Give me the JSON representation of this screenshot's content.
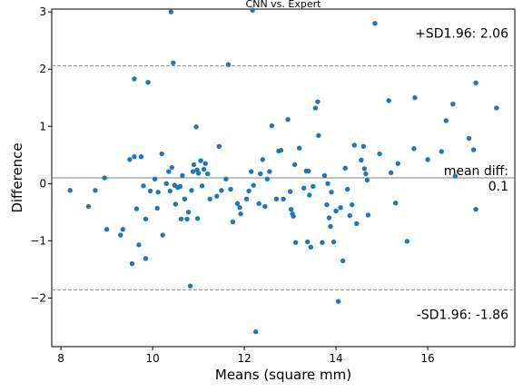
{
  "chart_data": {
    "type": "scatter",
    "title": "CNN vs. Expert",
    "xlabel": "Means (square mm)",
    "ylabel": "Difference",
    "xlim": [
      7.8,
      17.9
    ],
    "ylim": [
      -2.85,
      3.05
    ],
    "xticks": [
      8,
      10,
      12,
      14,
      16
    ],
    "yticks": [
      -2,
      -1,
      0,
      1,
      2,
      3
    ],
    "grid": false,
    "point_color": "#1f77b4",
    "mean_line": {
      "value": 0.1,
      "color": "#808080"
    },
    "upper_limit": {
      "value": 2.06,
      "color": "#808080"
    },
    "lower_limit": {
      "value": -1.86,
      "color": "#808080"
    },
    "annotations": {
      "upper": "+SD1.96: 2.06",
      "mean_label": "mean diff:",
      "mean_value": "0.1",
      "lower": "-SD1.96: -1.86"
    },
    "points": [
      [
        8.2,
        -0.12
      ],
      [
        8.6,
        -0.4
      ],
      [
        8.75,
        -0.12
      ],
      [
        8.95,
        0.1
      ],
      [
        9.0,
        -0.8
      ],
      [
        9.3,
        -0.9
      ],
      [
        9.35,
        -0.8
      ],
      [
        9.5,
        0.42
      ],
      [
        9.55,
        -1.4
      ],
      [
        9.6,
        0.47
      ],
      [
        9.65,
        -0.44
      ],
      [
        9.7,
        -1.07
      ],
      [
        9.6,
        1.83
      ],
      [
        9.75,
        0.47
      ],
      [
        9.8,
        -0.04
      ],
      [
        9.85,
        -1.31
      ],
      [
        9.85,
        -0.62
      ],
      [
        9.9,
        1.77
      ],
      [
        9.95,
        -0.13
      ],
      [
        10.05,
        0.08
      ],
      [
        10.1,
        -0.43
      ],
      [
        10.12,
        -0.15
      ],
      [
        10.2,
        0.52
      ],
      [
        10.22,
        -0.9
      ],
      [
        10.3,
        0.0
      ],
      [
        10.35,
        0.21
      ],
      [
        10.38,
        -0.13
      ],
      [
        10.4,
        3.0
      ],
      [
        10.42,
        0.28
      ],
      [
        10.45,
        2.11
      ],
      [
        10.48,
        -0.03
      ],
      [
        10.5,
        -0.36
      ],
      [
        10.55,
        -0.07
      ],
      [
        10.6,
        -0.05
      ],
      [
        10.62,
        -0.62
      ],
      [
        10.65,
        0.14
      ],
      [
        10.7,
        -0.27
      ],
      [
        10.75,
        -0.62
      ],
      [
        10.78,
        -0.5
      ],
      [
        10.82,
        -1.79
      ],
      [
        10.85,
        -0.12
      ],
      [
        10.88,
        0.21
      ],
      [
        10.9,
        0.33
      ],
      [
        10.95,
        0.99
      ],
      [
        10.97,
        0.24
      ],
      [
        10.98,
        -0.61
      ],
      [
        11.0,
        0.18
      ],
      [
        11.05,
        0.4
      ],
      [
        11.08,
        -0.04
      ],
      [
        11.12,
        0.25
      ],
      [
        11.15,
        0.35
      ],
      [
        11.2,
        0.17
      ],
      [
        11.25,
        -0.27
      ],
      [
        11.4,
        -0.22
      ],
      [
        11.45,
        0.65
      ],
      [
        11.5,
        -0.12
      ],
      [
        11.6,
        0.08
      ],
      [
        11.65,
        2.08
      ],
      [
        11.7,
        -0.1
      ],
      [
        11.75,
        -0.67
      ],
      [
        11.85,
        -0.35
      ],
      [
        11.9,
        -0.42
      ],
      [
        11.92,
        -0.53
      ],
      [
        12.05,
        -0.27
      ],
      [
        12.1,
        -0.13
      ],
      [
        12.15,
        0.21
      ],
      [
        12.18,
        3.03
      ],
      [
        12.2,
        -0.03
      ],
      [
        12.25,
        -2.59
      ],
      [
        12.32,
        -0.35
      ],
      [
        12.35,
        0.17
      ],
      [
        12.4,
        0.42
      ],
      [
        12.45,
        -0.4
      ],
      [
        12.5,
        0.08
      ],
      [
        12.55,
        0.21
      ],
      [
        12.6,
        1.01
      ],
      [
        12.7,
        -0.27
      ],
      [
        12.75,
        0.57
      ],
      [
        12.8,
        0.58
      ],
      [
        12.85,
        -0.27
      ],
      [
        12.95,
        1.12
      ],
      [
        13.0,
        -0.14
      ],
      [
        13.02,
        -0.45
      ],
      [
        13.05,
        -0.53
      ],
      [
        13.07,
        -0.57
      ],
      [
        13.1,
        0.33
      ],
      [
        13.12,
        -1.03
      ],
      [
        13.2,
        0.62
      ],
      [
        13.3,
        -0.08
      ],
      [
        13.35,
        0.22
      ],
      [
        13.38,
        -1.02
      ],
      [
        13.4,
        0.22
      ],
      [
        13.42,
        -0.2
      ],
      [
        13.45,
        -1.11
      ],
      [
        13.5,
        -0.05
      ],
      [
        13.55,
        1.32
      ],
      [
        13.6,
        1.43
      ],
      [
        13.62,
        0.84
      ],
      [
        13.7,
        -1.03
      ],
      [
        13.75,
        0.14
      ],
      [
        13.8,
        -0.37
      ],
      [
        13.82,
        0.0
      ],
      [
        13.85,
        -0.6
      ],
      [
        13.88,
        -0.75
      ],
      [
        13.9,
        -0.15
      ],
      [
        13.95,
        -1.02
      ],
      [
        14.0,
        -0.48
      ],
      [
        14.05,
        -2.06
      ],
      [
        14.1,
        -0.42
      ],
      [
        14.15,
        -1.35
      ],
      [
        14.2,
        0.27
      ],
      [
        14.25,
        -0.1
      ],
      [
        14.3,
        -0.56
      ],
      [
        14.35,
        -0.37
      ],
      [
        14.4,
        0.67
      ],
      [
        14.45,
        -0.7
      ],
      [
        14.55,
        0.41
      ],
      [
        14.6,
        0.65
      ],
      [
        14.62,
        0.26
      ],
      [
        14.65,
        0.17
      ],
      [
        14.68,
        0.06
      ],
      [
        14.7,
        -0.55
      ],
      [
        14.85,
        2.8
      ],
      [
        14.95,
        0.52
      ],
      [
        15.15,
        1.45
      ],
      [
        15.2,
        0.19
      ],
      [
        15.3,
        -0.34
      ],
      [
        15.35,
        0.35
      ],
      [
        15.55,
        -1.01
      ],
      [
        15.7,
        0.61
      ],
      [
        15.72,
        1.5
      ],
      [
        16.0,
        0.42
      ],
      [
        16.3,
        0.56
      ],
      [
        16.4,
        1.1
      ],
      [
        16.55,
        1.39
      ],
      [
        16.6,
        0.13
      ],
      [
        16.9,
        0.79
      ],
      [
        17.0,
        0.59
      ],
      [
        17.05,
        -0.45
      ],
      [
        17.05,
        1.76
      ],
      [
        17.5,
        1.32
      ]
    ]
  }
}
